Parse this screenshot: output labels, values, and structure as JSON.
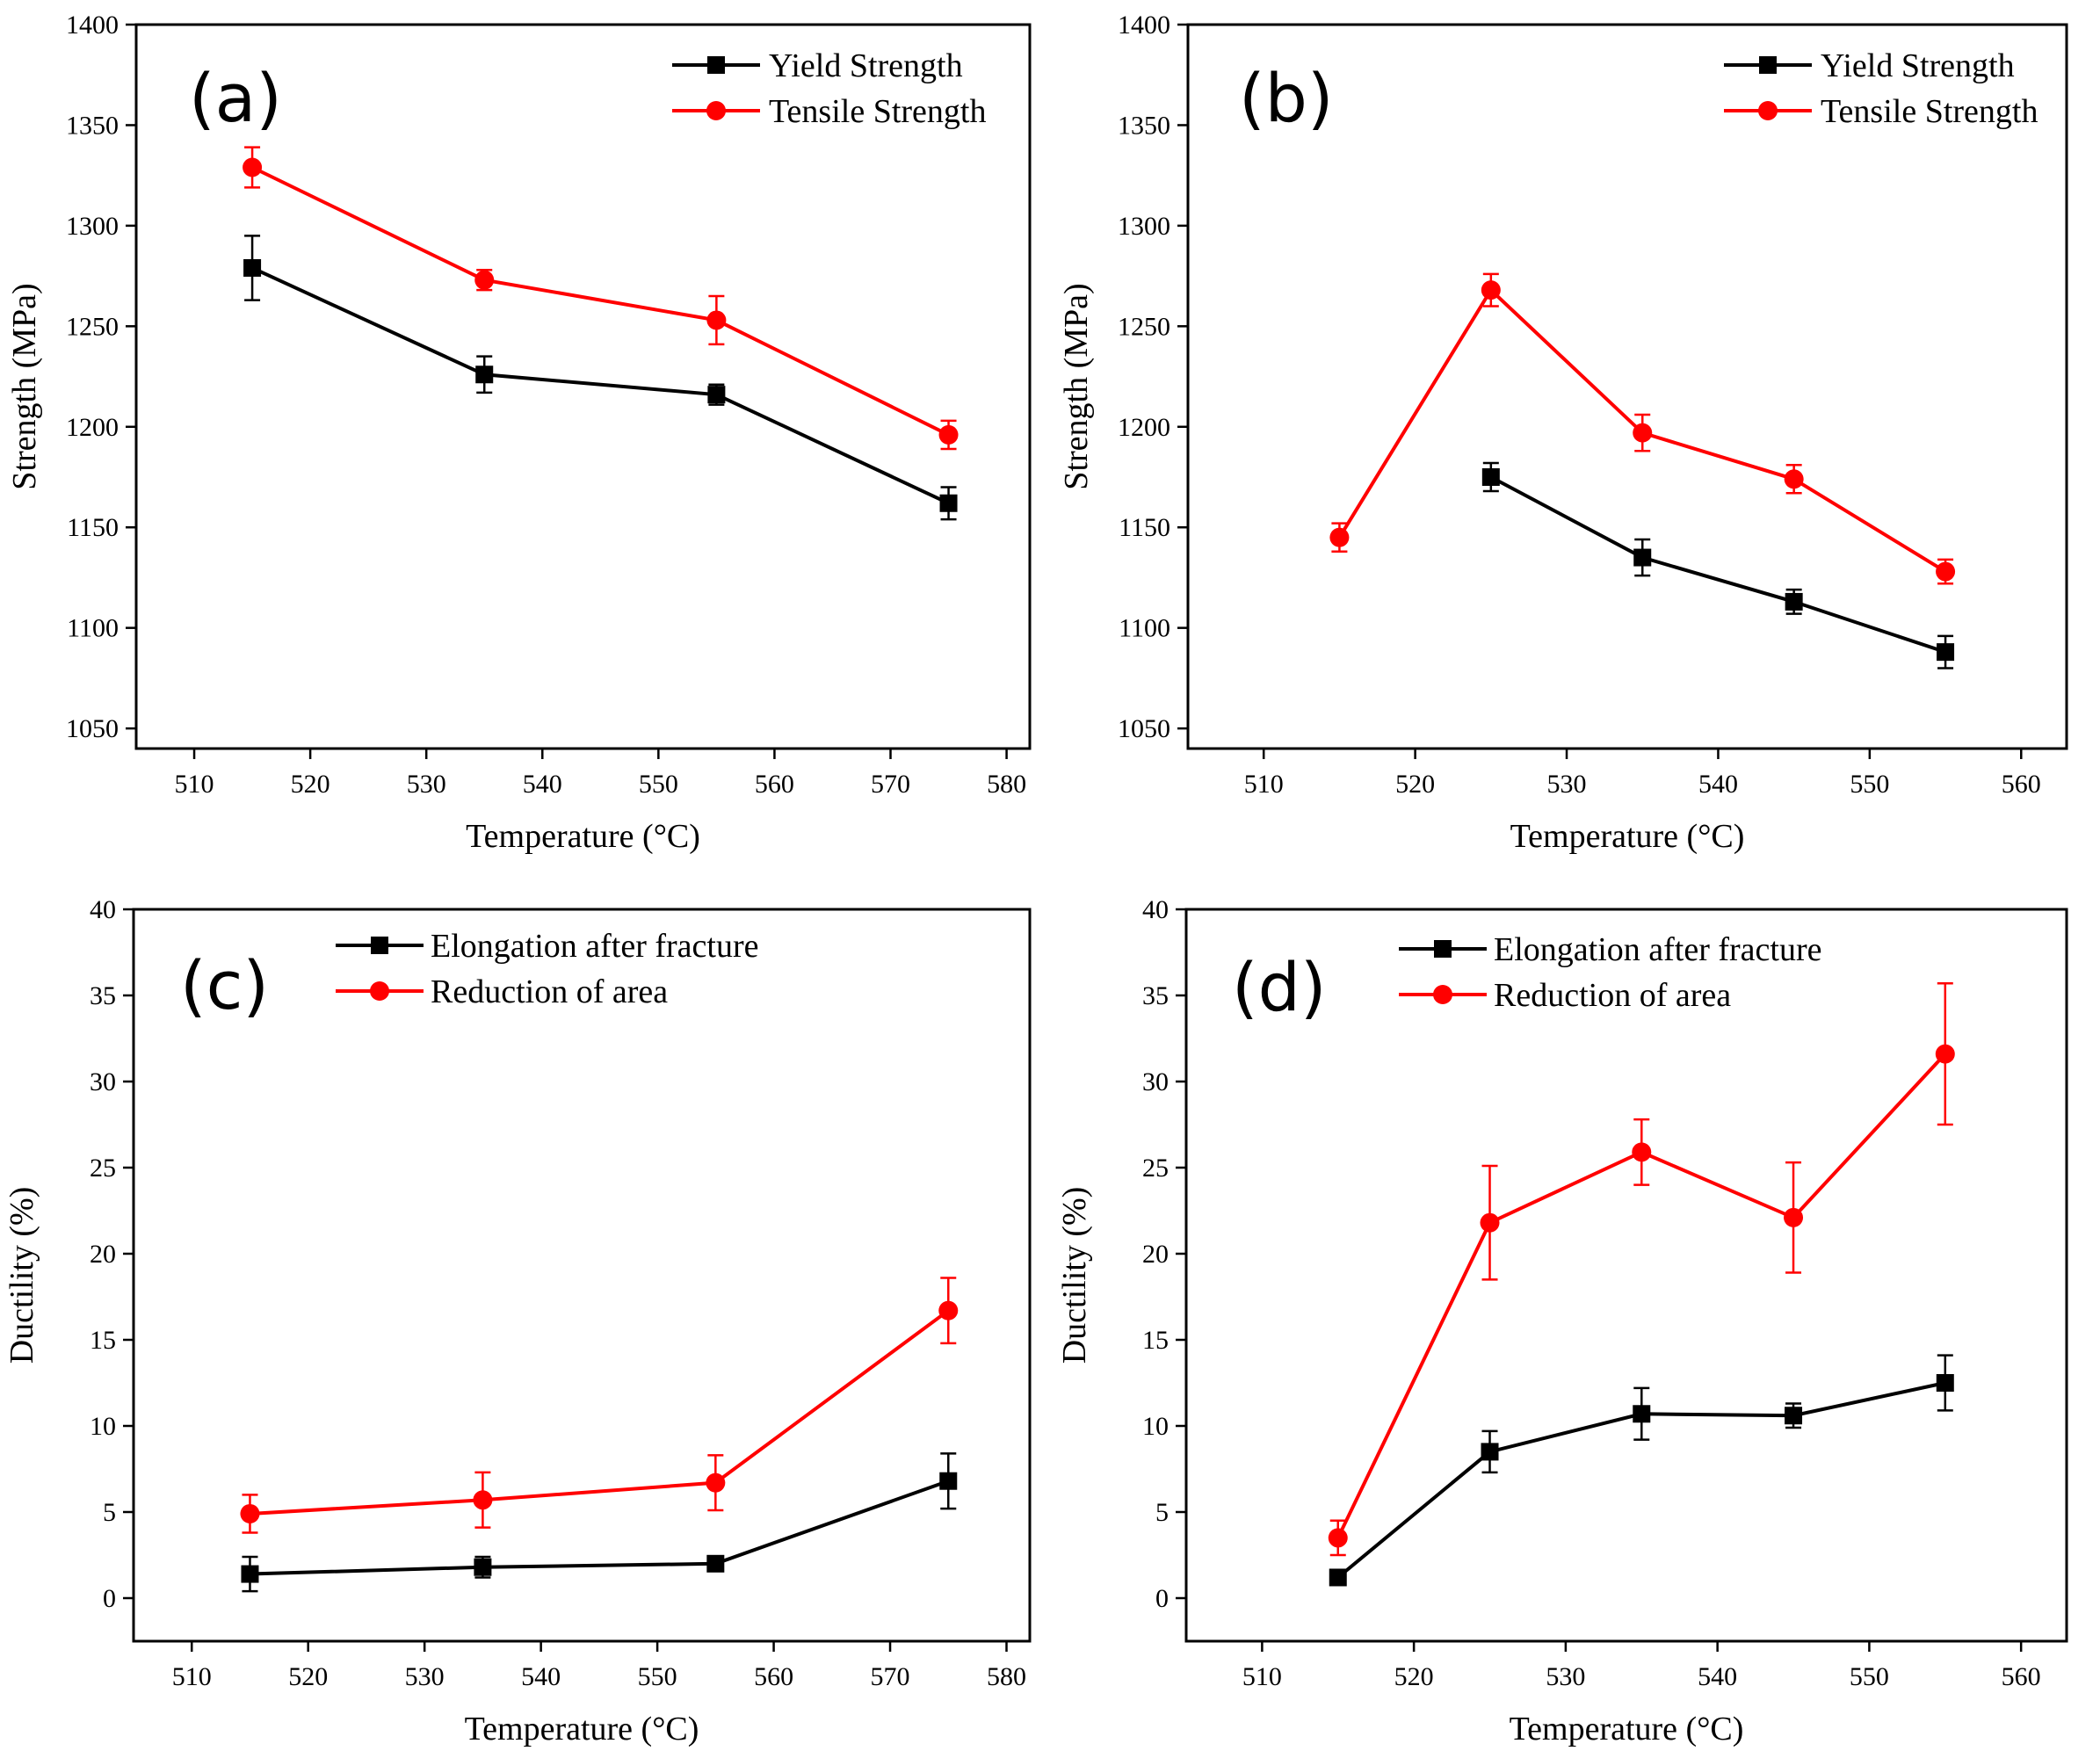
{
  "chart_data": [
    {
      "type": "line",
      "panel_label": "(a)",
      "xlabel": "Temperature (°C)",
      "ylabel": "Strength (MPa)",
      "xlim": [
        505,
        582
      ],
      "ylim": [
        1040,
        1400
      ],
      "xticks": [
        510,
        520,
        530,
        540,
        550,
        560,
        570,
        580
      ],
      "yticks": [
        1050,
        1100,
        1150,
        1200,
        1250,
        1300,
        1350,
        1400
      ],
      "legend_position": "top-right",
      "series": [
        {
          "name": "Yield Strength",
          "color": "#000000",
          "marker": "square",
          "x": [
            515,
            535,
            555,
            575
          ],
          "values": [
            1279,
            1226,
            1216,
            1162
          ],
          "errors": [
            16,
            9,
            5,
            8
          ]
        },
        {
          "name": "Tensile Strength",
          "color": "#ff0000",
          "marker": "circle",
          "x": [
            515,
            535,
            555,
            575
          ],
          "values": [
            1329,
            1273,
            1253,
            1196
          ],
          "errors": [
            10,
            5,
            12,
            7
          ]
        }
      ]
    },
    {
      "type": "line",
      "panel_label": "(b)",
      "xlabel": "Temperature (°C)",
      "ylabel": "Strength (MPa)",
      "xlim": [
        505,
        563
      ],
      "ylim": [
        1040,
        1400
      ],
      "xticks": [
        510,
        520,
        530,
        540,
        550,
        560
      ],
      "yticks": [
        1050,
        1100,
        1150,
        1200,
        1250,
        1300,
        1350,
        1400
      ],
      "legend_position": "top-right",
      "series": [
        {
          "name": "Yield Strength",
          "color": "#000000",
          "marker": "square",
          "x": [
            525,
            535,
            545,
            555
          ],
          "values": [
            1175,
            1135,
            1113,
            1088
          ],
          "errors": [
            7,
            9,
            6,
            8
          ]
        },
        {
          "name": "Tensile Strength",
          "color": "#ff0000",
          "marker": "circle",
          "x": [
            515,
            525,
            535,
            545,
            555
          ],
          "values": [
            1145,
            1268,
            1197,
            1174,
            1128
          ],
          "errors": [
            7,
            8,
            9,
            7,
            6
          ]
        }
      ]
    },
    {
      "type": "line",
      "panel_label": "(c)",
      "xlabel": "Temperature (°C)",
      "ylabel": "Ductility (%)",
      "xlim": [
        505,
        582
      ],
      "ylim": [
        -2.5,
        40
      ],
      "xticks": [
        510,
        520,
        530,
        540,
        550,
        560,
        570,
        580
      ],
      "yticks": [
        0,
        5,
        10,
        15,
        20,
        25,
        30,
        35,
        40
      ],
      "legend_position": "top-center",
      "series": [
        {
          "name": "Elongation after fracture",
          "color": "#000000",
          "marker": "square",
          "x": [
            515,
            535,
            555,
            575
          ],
          "values": [
            1.4,
            1.8,
            2.0,
            6.8
          ],
          "errors": [
            1.0,
            0.6,
            0.3,
            1.6
          ]
        },
        {
          "name": "Reduction of area",
          "color": "#ff0000",
          "marker": "circle",
          "x": [
            515,
            535,
            555,
            575
          ],
          "values": [
            4.9,
            5.7,
            6.7,
            16.7
          ],
          "errors": [
            1.1,
            1.6,
            1.6,
            1.9
          ]
        }
      ]
    },
    {
      "type": "line",
      "panel_label": "(d)",
      "xlabel": "Temperature (°C)",
      "ylabel": "Ductility (%)",
      "xlim": [
        505,
        563
      ],
      "ylim": [
        -2.5,
        40
      ],
      "xticks": [
        510,
        520,
        530,
        540,
        550,
        560
      ],
      "yticks": [
        0,
        5,
        10,
        15,
        20,
        25,
        30,
        35,
        40
      ],
      "legend_position": "top-center",
      "series": [
        {
          "name": "Elongation after fracture",
          "color": "#000000",
          "marker": "square",
          "x": [
            515,
            525,
            535,
            545,
            555
          ],
          "values": [
            1.2,
            8.5,
            10.7,
            10.6,
            12.5
          ],
          "errors": [
            0.2,
            1.2,
            1.5,
            0.7,
            1.6
          ]
        },
        {
          "name": "Reduction of area",
          "color": "#ff0000",
          "marker": "circle",
          "x": [
            515,
            525,
            535,
            545,
            555
          ],
          "values": [
            3.5,
            21.8,
            25.9,
            22.1,
            31.6
          ],
          "errors": [
            1.0,
            3.3,
            1.9,
            3.2,
            4.1
          ]
        }
      ]
    }
  ]
}
